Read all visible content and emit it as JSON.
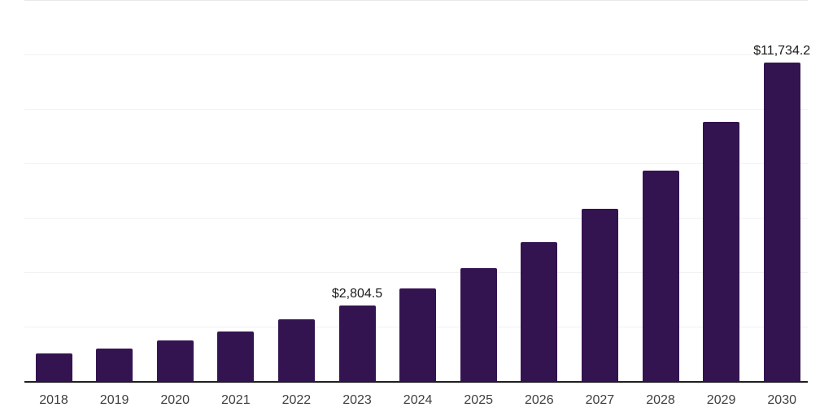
{
  "chart_data": {
    "type": "bar",
    "title": "",
    "xlabel": "",
    "ylabel": "",
    "categories": [
      "2018",
      "2019",
      "2020",
      "2021",
      "2022",
      "2023",
      "2024",
      "2025",
      "2026",
      "2027",
      "2028",
      "2029",
      "2030"
    ],
    "values": [
      1040,
      1230,
      1530,
      1860,
      2290,
      2804.5,
      3420,
      4180,
      5130,
      6360,
      7770,
      9560,
      11734.2
    ],
    "value_labels": [
      "",
      "",
      "",
      "",
      "",
      "$2,804.5",
      "",
      "",
      "",
      "",
      "",
      "",
      "$11,734.2"
    ],
    "ylim": [
      0,
      14000
    ],
    "gridline_interval": 2000,
    "grid": "horizontal-only",
    "legend": "none",
    "y_axis_tick_labels_visible": false,
    "colors": {
      "bar": "#341450",
      "axis_line": "#1f1f1f",
      "gridline": "#f2f2f2",
      "gridline_top": "#e8e8e8",
      "value_label": "#1a1a1a",
      "tick_label": "#3f3f3f",
      "background": "#ffffff"
    }
  }
}
